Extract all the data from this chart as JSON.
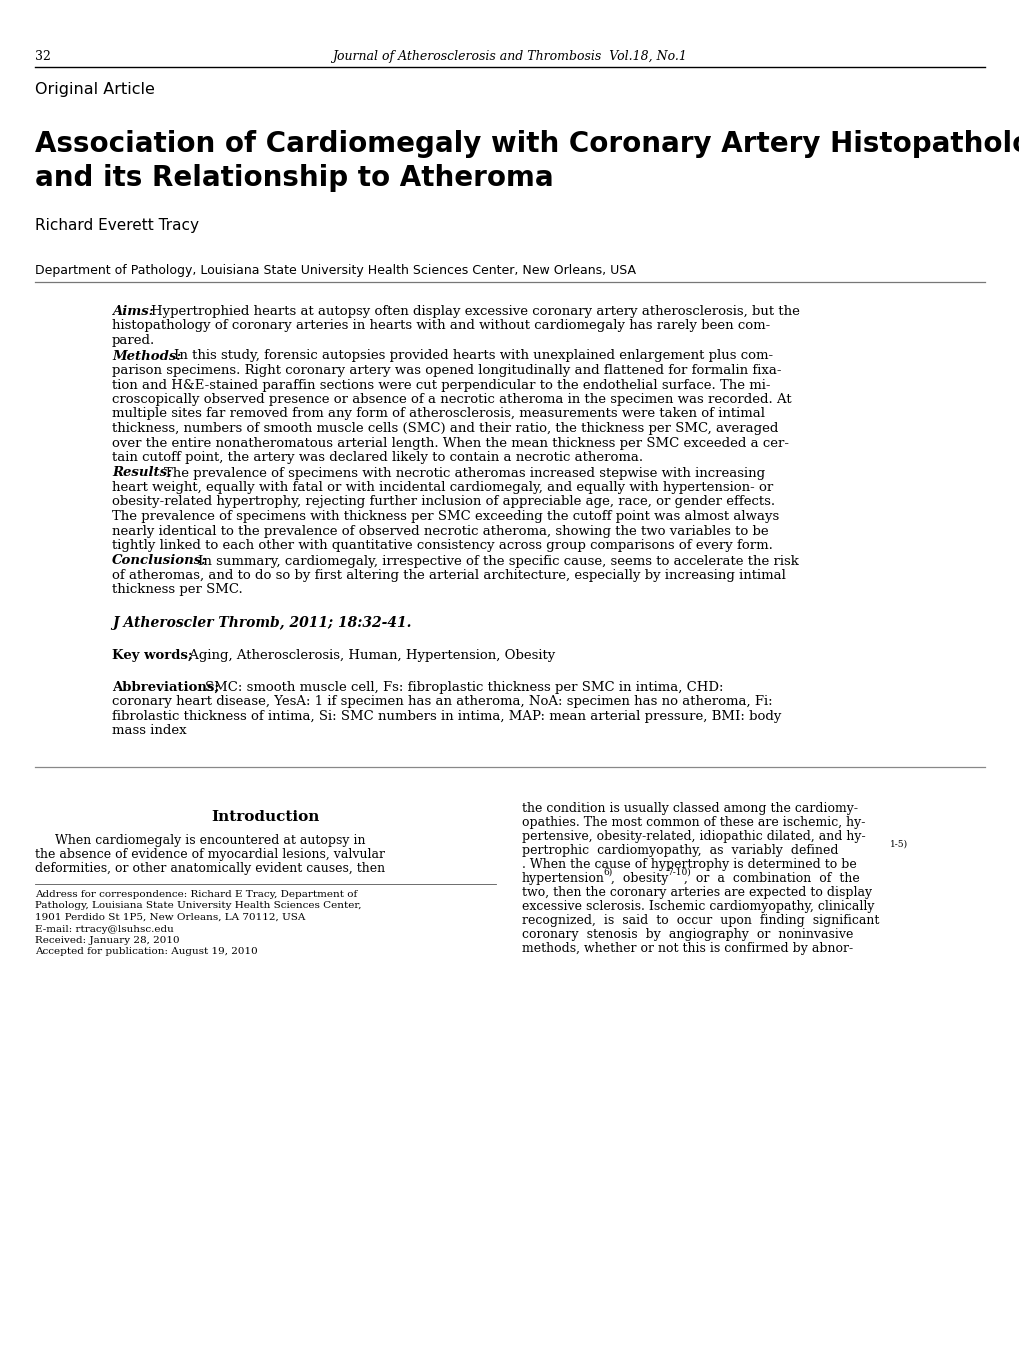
{
  "bg_color": "#ffffff",
  "page_number": "32",
  "journal_header": "Journal of Atherosclerosis and Thrombosis  Vol.18, No.1",
  "section_label": "Original Article",
  "title_line1": "Association of Cardiomegaly with Coronary Artery Histopathology",
  "title_line2": "and its Relationship to Atheroma",
  "author": "Richard Everett Tracy",
  "affiliation": "Department of Pathology, Louisiana State University Health Sciences Center, New Orleans, USA",
  "aims_label": "Aims:",
  "aims_body": " Hypertrophied hearts at autopsy often display excessive coronary artery atherosclerosis, but the histopathology of coronary arteries in hearts with and without cardiomegaly has rarely been com-pared.",
  "methods_label": "Methods:",
  "methods_body": " In this study, forensic autopsies provided hearts with unexplained enlargement plus com-parison specimens. Right coronary artery was opened longitudinally and flattened for formalin fixa-tion and H&E-stained paraffin sections were cut perpendicular to the endothelial surface. The mi-croscopically observed presence or absence of a necrotic atheroma in the specimen was recorded. At multiple sites far removed from any form of atherosclerosis, measurements were taken of intimal thickness, numbers of smooth muscle cells (SMC) and their ratio, the thickness per SMC, averaged over the entire nonatheromatous arterial length. When the mean thickness per SMC exceeded a cer-tain cutoff point, the artery was declared likely to contain a necrotic atheroma.",
  "results_label": "Results:",
  "results_body": " The prevalence of specimens with necrotic atheromas increased stepwise with increasing heart weight, equally with fatal or with incidental cardiomegaly, and equally with hypertension- or obesity-related hypertrophy, rejecting further inclusion of appreciable age, race, or gender effects. The prevalence of specimens with thickness per SMC exceeding the cutoff point was almost always nearly identical to the prevalence of observed necrotic atheroma, showing the two variables to be tightly linked to each other with quantitative consistency across group comparisons of every form.",
  "conclusions_label": "Conclusions:",
  "conclusions_body": " In summary, cardiomegaly, irrespective of the specific cause, seems to accelerate the risk of atheromas, and to do so by first altering the arterial architecture, especially by increasing intimal thickness per SMC.",
  "journal_ref": "J Atheroscler Thromb, 2011; 18:32-41.",
  "keywords_label": "Key words;",
  "keywords_body": " Aging, Atherosclerosis, Human, Hypertension, Obesity",
  "abbrev_label": "Abbreviations;",
  "abbrev_body": " SMC: smooth muscle cell, Fs: fibroplastic thickness per SMC in intima, CHD: coronary heart disease, YesA: 1 if specimen has an atheroma, NoA: specimen has no atheroma, Fi: fibrolastic thickness of intima, Si: SMC numbers in intima, MAP: mean arterial pressure, BMI: body mass index",
  "intro_heading": "Introduction",
  "intro_body": "     When cardiomegaly is encountered at autopsy in the absence of evidence of myocardial lesions, valvular deformities, or other anatomically evident causes, then",
  "right_body1": "the condition is usually classed among the cardiomy-opathies. The most common of these are ischemic, hy-pertensive, obesity-related, idiopathic dilated, and hy-pertrophic  cardiomyopathy,  as  variably  defined",
  "right_sup1": "1-5)",
  "right_body2": ". When the cause of hypertrophy is determined to be hypertension",
  "right_sup2": "6)",
  "right_body3": ",  obesity",
  "right_sup3": "7-10)",
  "right_body4": ",  or  a  combination  of  the two, then the coronary arteries are expected to display excessive sclerosis. Ischemic cardiomyopathy, clinically recognized,  is  said  to  occur  upon  finding  significant coronary  stenosis  by  angiography  or  noninvasive methods, whether or not this is confirmed by abnor-",
  "address_text": "Address for correspondence: Richard E Tracy, Department of\nPathology, Louisiana State University Health Sciences Center,\n1901 Perdido St 1P5, New Orleans, LA 70112, USA\nE-mail: rtracy@lsuhsc.edu\nReceived: January 28, 2010\nAccepted for publication: August 19, 2010",
  "lm": 35,
  "rm": 985,
  "col_mid": 504
}
